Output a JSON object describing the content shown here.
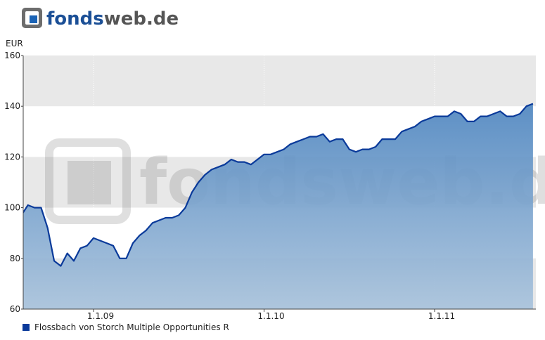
{
  "logo": {
    "first": "fonds",
    "second": "web.de"
  },
  "chart_data": {
    "type": "area",
    "y_label": "EUR",
    "categories": [
      null,
      null,
      null,
      null,
      null,
      null,
      null,
      null,
      null,
      null,
      null,
      "1.1.09",
      null,
      null,
      null,
      null,
      null,
      null,
      null,
      null,
      null,
      null,
      null,
      null,
      null,
      null,
      null,
      null,
      null,
      null,
      null,
      null,
      null,
      null,
      null,
      null,
      null,
      "1.1.10",
      null,
      null,
      null,
      null,
      null,
      null,
      null,
      null,
      null,
      null,
      null,
      null,
      null,
      null,
      null,
      null,
      null,
      null,
      null,
      null,
      null,
      null,
      null,
      null,
      null,
      "1.1.11",
      null,
      null,
      null,
      null,
      null,
      null,
      null,
      null,
      null,
      null,
      null,
      null,
      null,
      null,
      null
    ],
    "series": [
      {
        "name": "Flossbach von Storch Multiple Opportunities R",
        "color": "#0a3a9a",
        "values": [
          97,
          101,
          100,
          100,
          92,
          79,
          77,
          82,
          79,
          84,
          85,
          88,
          87,
          86,
          85,
          80,
          80,
          86,
          89,
          91,
          94,
          95,
          96,
          96,
          97,
          100,
          106,
          110,
          113,
          115,
          116,
          117,
          119,
          118,
          118,
          117,
          119,
          121,
          121,
          122,
          123,
          125,
          126,
          127,
          128,
          128,
          129,
          126,
          127,
          127,
          123,
          122,
          123,
          123,
          124,
          127,
          127,
          127,
          130,
          131,
          132,
          134,
          135,
          136,
          136,
          136,
          138,
          137,
          134,
          134,
          136,
          136,
          137,
          138,
          136,
          136,
          137,
          140,
          141
        ]
      }
    ],
    "ylim": [
      60,
      160
    ],
    "yticks": [
      60,
      80,
      100,
      120,
      140,
      160
    ],
    "grid": true
  }
}
